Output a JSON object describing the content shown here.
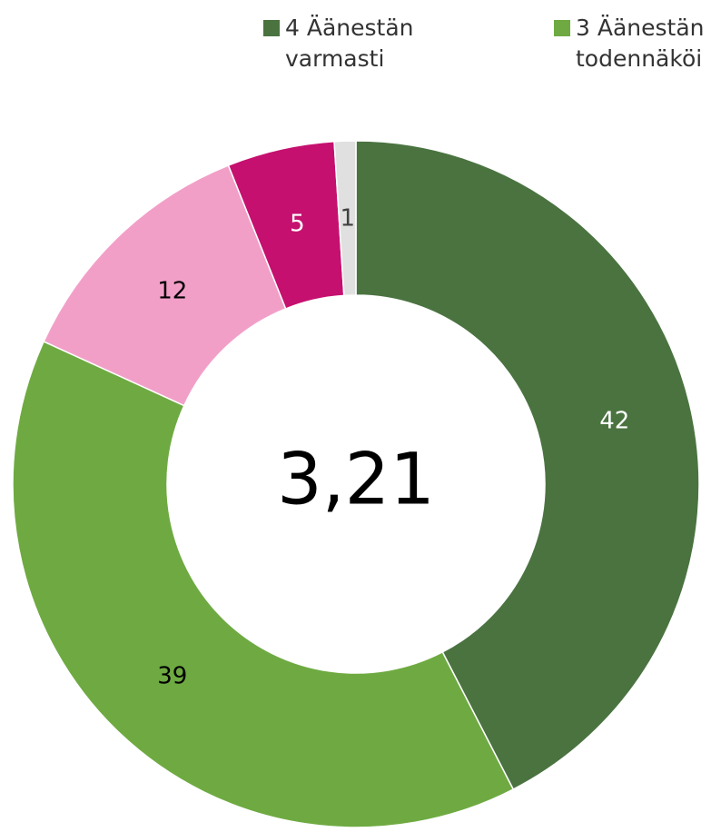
{
  "chart_data": {
    "type": "donut",
    "categories": [
      "4 Äänestän varmasti",
      "3 Äänestän todennäköi",
      null,
      null,
      null
    ],
    "values": [
      42,
      39,
      12,
      5,
      1
    ],
    "colors": [
      "#4a7340",
      "#6eaa41",
      "#f29fc8",
      "#c5106f",
      "#e0e0e0"
    ],
    "label_colors": [
      "#ffffff",
      "#000000",
      "#000000",
      "#ffffff",
      "#404040"
    ],
    "center_label": "3,21"
  }
}
